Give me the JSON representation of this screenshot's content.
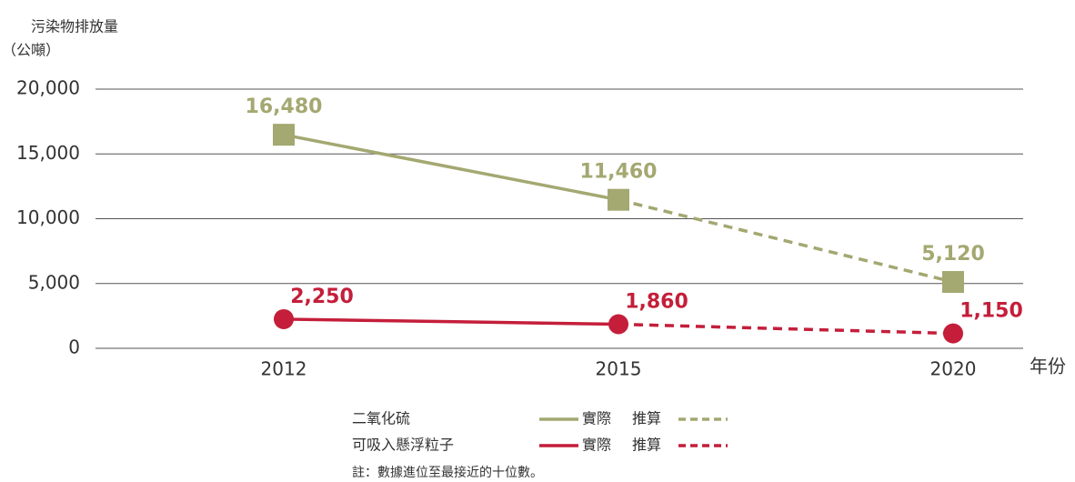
{
  "chart_data": {
    "type": "line",
    "y_label_lines": [
      "污染物排放量",
      "（公噸）"
    ],
    "x_label": "年份",
    "categories": [
      "2012",
      "2015",
      "2020"
    ],
    "series": [
      {
        "name": "二氧化硫",
        "color": "#a4a871",
        "marker": "square",
        "segment_styles": [
          "solid",
          "dashed"
        ],
        "values": [
          16480,
          11460,
          5120
        ],
        "value_labels": [
          "16,480",
          "11,460",
          "5,120"
        ]
      },
      {
        "name": "可吸入懸浮粒子",
        "color": "#c41e3a",
        "marker": "circle",
        "segment_styles": [
          "solid",
          "dashed"
        ],
        "values": [
          2250,
          1860,
          1150
        ],
        "value_labels": [
          "2,250",
          "1,860",
          "1,150"
        ]
      }
    ],
    "ylim": [
      0,
      20000
    ],
    "yticks": [
      0,
      {
        "value": 5000,
        "label": "5,000"
      },
      {
        "value": 10000,
        "label": "10,000"
      },
      {
        "value": 15000,
        "label": "15,000"
      },
      {
        "value": 20000,
        "label": "20,000"
      }
    ],
    "grid": true,
    "legend_labels": {
      "solid": "實際",
      "dashed": "推算"
    },
    "note": "註：數據進位至最接近的十位數。"
  }
}
